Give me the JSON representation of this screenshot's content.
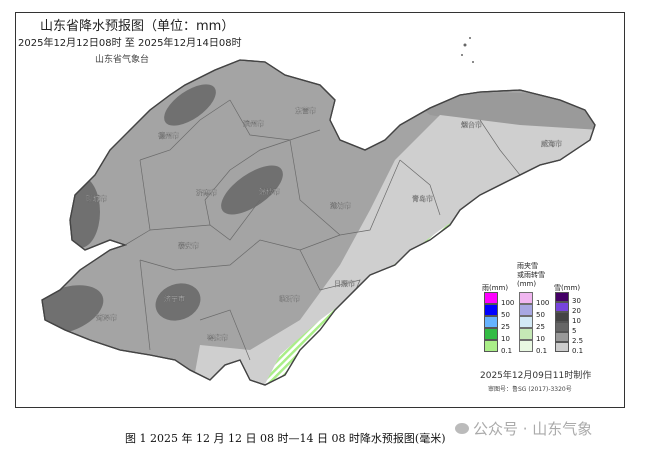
{
  "title": "山东省降水预报图（单位：mm）",
  "period": "2025年12月12日08时  至  2025年12月14日08时",
  "issuer": "山东省气象台",
  "cities": [
    "德州市",
    "滨州市",
    "东营市",
    "聊城市",
    "济南市",
    "淄博市",
    "潍坊市",
    "泰安市",
    "菏泽市",
    "济宁市",
    "枣庄市",
    "临沂市",
    "日照市",
    "青岛市",
    "烟台市",
    "威海市"
  ],
  "legend": {
    "rain": {
      "title": "雨(mm)",
      "levels": [
        "100",
        "50",
        "25",
        "10",
        "0.1"
      ],
      "colors": [
        "#ff00ff",
        "#0000ff",
        "#66b3ff",
        "#33bb44",
        "#aaee88"
      ]
    },
    "mixed": {
      "title1": "雨夹雪",
      "title2": "或雨转雪",
      "title3": "(mm)",
      "levels": [
        "100",
        "50",
        "25",
        "10",
        "0.1"
      ],
      "colors": [
        "#eeaaee",
        "#9999dd",
        "#cce6f5",
        "#bbe6aa",
        "#e6f7dd"
      ]
    },
    "snow": {
      "title": "雪(mm)",
      "levels": [
        "30",
        "20",
        "10",
        "5",
        "2.5",
        "0.1"
      ],
      "colors": [
        "#440066",
        "#7744dd",
        "#444444",
        "#666666",
        "#999999",
        "#cccccc"
      ]
    }
  },
  "made_time": "2025年12月09日11时制作",
  "audit_no": "审图号：鲁SG (2017)-3320号",
  "caption": "图 1  2025 年 12 月 12 日 08 时—14 日 08 时降水预报图(毫米)",
  "watermark": "公众号 · 山东气象"
}
